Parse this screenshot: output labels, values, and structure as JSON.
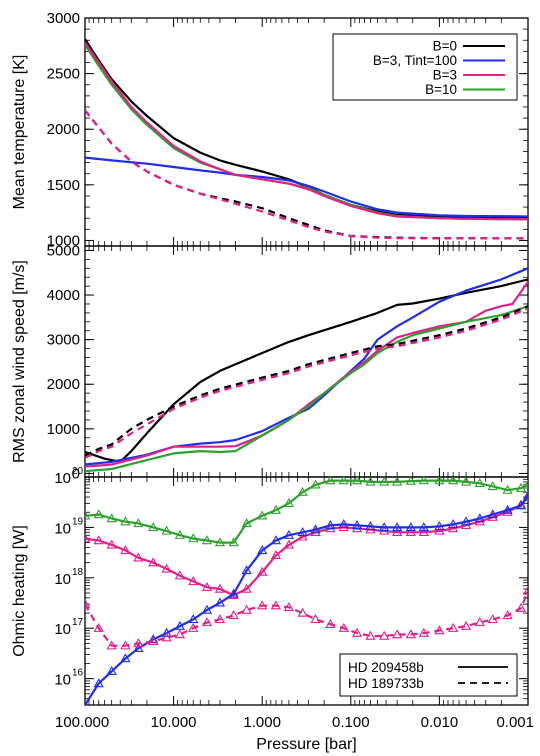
{
  "colors": {
    "black": "#000000",
    "blue": "#1f2ee8",
    "magenta": "#e0218a",
    "green": "#2ea02c"
  },
  "chart_data": [
    {
      "type": "line",
      "panel": "top",
      "ylabel": "Mean temperature [K]",
      "x_scale": "log-reversed",
      "xlim": [
        100,
        0.001
      ],
      "ylim": [
        950,
        3000
      ],
      "yticks": [
        1000,
        1500,
        2000,
        2500,
        3000
      ],
      "ytick_labels": [
        "1000",
        "1500",
        "2000",
        "2500",
        "3000"
      ],
      "legend_position": "top-right",
      "legend": [
        {
          "label": "B=0",
          "color": "#000000"
        },
        {
          "label": "B=3, Tint=100",
          "color": "#1f2ee8"
        },
        {
          "label": "B=3",
          "color": "#e0218a"
        },
        {
          "label": "B=10",
          "color": "#2ea02c"
        }
      ],
      "series": [
        {
          "color": "#000000",
          "dash": "solid",
          "x": [
            100,
            70,
            50,
            30,
            20,
            10,
            5,
            3,
            2,
            1,
            0.5,
            0.3,
            0.2,
            0.1,
            0.05,
            0.03,
            0.01,
            0.005,
            0.002,
            0.001
          ],
          "y": [
            2810,
            2620,
            2450,
            2250,
            2120,
            1920,
            1790,
            1720,
            1680,
            1620,
            1550,
            1480,
            1410,
            1320,
            1260,
            1230,
            1210,
            1205,
            1200,
            1200
          ]
        },
        {
          "color": "#1f2ee8",
          "dash": "solid",
          "x": [
            100,
            50,
            20,
            10,
            5,
            3,
            2,
            1,
            0.5,
            0.3,
            0.2,
            0.1,
            0.05,
            0.03,
            0.01,
            0.005,
            0.002,
            0.001
          ],
          "y": [
            1745,
            1720,
            1690,
            1660,
            1630,
            1610,
            1590,
            1570,
            1540,
            1490,
            1440,
            1350,
            1280,
            1250,
            1225,
            1220,
            1218,
            1215
          ]
        },
        {
          "color": "#2ea02c",
          "dash": "solid",
          "x": [
            100,
            70,
            50,
            30,
            20,
            10,
            5,
            3,
            2,
            1,
            0.5,
            0.3,
            0.2,
            0.1,
            0.05,
            0.03,
            0.01,
            0.005,
            0.002,
            0.001
          ],
          "y": [
            2760,
            2570,
            2400,
            2180,
            2040,
            1830,
            1700,
            1640,
            1590,
            1550,
            1510,
            1470,
            1410,
            1320,
            1250,
            1220,
            1200,
            1195,
            1192,
            1190
          ]
        },
        {
          "color": "#e0218a",
          "dash": "solid",
          "x": [
            100,
            70,
            50,
            30,
            20,
            10,
            5,
            3,
            2,
            1,
            0.5,
            0.3,
            0.2,
            0.1,
            0.05,
            0.03,
            0.01,
            0.005,
            0.002,
            0.001
          ],
          "y": [
            2780,
            2600,
            2430,
            2200,
            2060,
            1850,
            1710,
            1640,
            1590,
            1550,
            1510,
            1460,
            1400,
            1310,
            1245,
            1215,
            1200,
            1195,
            1192,
            1190
          ]
        },
        {
          "color": "#000000",
          "dash": "dashed",
          "x": [
            100,
            50,
            30,
            20,
            10,
            5,
            3,
            2,
            1,
            0.5,
            0.3,
            0.2,
            0.1,
            0.05,
            0.03,
            0.01,
            0.005,
            0.002,
            0.001
          ],
          "y": [
            2170,
            1870,
            1710,
            1620,
            1500,
            1420,
            1380,
            1350,
            1290,
            1200,
            1140,
            1090,
            1040,
            1030,
            1025,
            1020,
            1020,
            1018,
            1018
          ]
        },
        {
          "color": "#e0218a",
          "dash": "dashed",
          "x": [
            100,
            50,
            30,
            20,
            10,
            5,
            3,
            2,
            1,
            0.5,
            0.3,
            0.2,
            0.1,
            0.05,
            0.03,
            0.01,
            0.005,
            0.002,
            0.001
          ],
          "y": [
            2170,
            1870,
            1710,
            1620,
            1500,
            1420,
            1370,
            1330,
            1260,
            1180,
            1120,
            1080,
            1040,
            1025,
            1020,
            1018,
            1018,
            1018,
            1018
          ]
        }
      ]
    },
    {
      "type": "line",
      "panel": "middle",
      "ylabel": "RMS zonal wind speed [m/s]",
      "x_scale": "log-reversed",
      "xlim": [
        100,
        0.001
      ],
      "ylim": [
        -80,
        5100
      ],
      "yticks": [
        0,
        1000,
        2000,
        3000,
        4000,
        5000
      ],
      "ytick_labels": [
        "0",
        "1000",
        "2000",
        "3000",
        "4000",
        "5000"
      ],
      "series": [
        {
          "color": "#000000",
          "dash": "solid",
          "x": [
            100,
            60,
            40,
            30,
            20,
            10,
            5,
            3,
            1,
            0.5,
            0.3,
            0.1,
            0.05,
            0.03,
            0.02,
            0.01,
            0.005,
            0.002,
            0.001
          ],
          "y": [
            480,
            330,
            260,
            500,
            900,
            1550,
            2050,
            2300,
            2700,
            2950,
            3100,
            3400,
            3600,
            3780,
            3810,
            3920,
            4050,
            4200,
            4350
          ]
        },
        {
          "color": "#1f2ee8",
          "dash": "solid",
          "x": [
            100,
            50,
            20,
            10,
            5,
            3,
            2,
            1,
            0.5,
            0.3,
            0.2,
            0.1,
            0.07,
            0.05,
            0.03,
            0.02,
            0.01,
            0.005,
            0.002,
            0.001
          ],
          "y": [
            200,
            260,
            420,
            600,
            670,
            700,
            750,
            950,
            1250,
            1450,
            1750,
            2300,
            2580,
            3000,
            3300,
            3500,
            3850,
            4100,
            4350,
            4600
          ]
        },
        {
          "color": "#e0218a",
          "dash": "solid",
          "x": [
            100,
            50,
            20,
            10,
            5,
            3,
            2,
            1,
            0.5,
            0.3,
            0.2,
            0.1,
            0.07,
            0.05,
            0.03,
            0.02,
            0.01,
            0.005,
            0.003,
            0.002,
            0.0015,
            0.001
          ],
          "y": [
            150,
            200,
            400,
            600,
            600,
            600,
            610,
            850,
            1200,
            1550,
            1800,
            2280,
            2500,
            2750,
            3050,
            3150,
            3300,
            3400,
            3650,
            3750,
            3800,
            4300
          ]
        },
        {
          "color": "#2ea02c",
          "dash": "solid",
          "x": [
            100,
            50,
            20,
            10,
            5,
            3,
            2,
            1,
            0.5,
            0.3,
            0.2,
            0.1,
            0.07,
            0.05,
            0.03,
            0.02,
            0.01,
            0.005,
            0.002,
            0.001
          ],
          "y": [
            50,
            100,
            300,
            450,
            500,
            480,
            500,
            850,
            1200,
            1500,
            1800,
            2250,
            2450,
            2700,
            2950,
            3100,
            3250,
            3400,
            3550,
            3750
          ]
        },
        {
          "color": "#000000",
          "dash": "dashed",
          "x": [
            100,
            70,
            50,
            30,
            20,
            10,
            5,
            3,
            1,
            0.5,
            0.3,
            0.1,
            0.05,
            0.03,
            0.01,
            0.005,
            0.002,
            0.001
          ],
          "y": [
            400,
            550,
            650,
            1000,
            1200,
            1500,
            1750,
            1900,
            2150,
            2300,
            2450,
            2700,
            2850,
            2900,
            3100,
            3250,
            3500,
            3750
          ]
        },
        {
          "color": "#e0218a",
          "dash": "dashed",
          "x": [
            100,
            70,
            50,
            30,
            20,
            10,
            5,
            3,
            1,
            0.5,
            0.3,
            0.1,
            0.05,
            0.03,
            0.01,
            0.005,
            0.002,
            0.001
          ],
          "y": [
            350,
            500,
            600,
            900,
            1100,
            1450,
            1700,
            1850,
            2100,
            2250,
            2400,
            2650,
            2800,
            2850,
            3050,
            3200,
            3450,
            3700
          ]
        }
      ]
    },
    {
      "type": "line",
      "panel": "bottom",
      "ylabel": "Ohmic heating [W]",
      "xlabel": "Pressure [bar]",
      "x_scale": "log-reversed",
      "y_scale": "log",
      "xlim": [
        100,
        0.001
      ],
      "ylim": [
        3000000000000000.0,
        1e+20
      ],
      "yticks": [
        1e+16,
        1e+17,
        1e+18,
        1e+19,
        1e+20
      ],
      "ytick_labels": [
        [
          "10",
          "16"
        ],
        [
          "10",
          "17"
        ],
        [
          "10",
          "18"
        ],
        [
          "10",
          "19"
        ],
        [
          "10",
          "20"
        ]
      ],
      "xticks": [
        100,
        10,
        1,
        0.1,
        0.01,
        0.001
      ],
      "xtick_labels": [
        "100.000",
        "10.000",
        "1.000",
        "0.100",
        "0.010",
        "0.001"
      ],
      "marker": "triangle",
      "legend_position": "bottom-right",
      "legend": [
        {
          "label": "HD 209458b",
          "dash": "solid"
        },
        {
          "label": "HD 189733b",
          "dash": "dashed"
        }
      ],
      "series": [
        {
          "color": "#2ea02c",
          "dash": "solid",
          "x": [
            100,
            70,
            50,
            35,
            25,
            17,
            12,
            8.5,
            6,
            4.2,
            3,
            2.1,
            1.5,
            1.0,
            0.7,
            0.5,
            0.35,
            0.25,
            0.17,
            0.12,
            0.085,
            0.06,
            0.042,
            0.03,
            0.021,
            0.015,
            0.01,
            0.007,
            0.005,
            0.0035,
            0.0025,
            0.0017,
            0.0012,
            0.001
          ],
          "y": [
            1.7e+19,
            1.8e+19,
            1.5e+19,
            1.3e+19,
            1.2e+19,
            1e+19,
            8.5e+18,
            7e+18,
            6e+18,
            5.5e+18,
            5e+18,
            5e+18,
            1.2e+19,
            1.7e+19,
            2.2e+19,
            3e+19,
            5e+19,
            7e+19,
            8.5e+19,
            8.5e+19,
            8.5e+19,
            8e+19,
            8e+19,
            8e+19,
            8.3e+19,
            8.5e+19,
            8.5e+19,
            8.5e+19,
            8e+19,
            7.5e+19,
            6.5e+19,
            5.5e+19,
            6e+19,
            7e+19
          ]
        },
        {
          "color": "#e0218a",
          "dash": "solid",
          "x": [
            100,
            70,
            50,
            35,
            25,
            17,
            12,
            8.5,
            6,
            4.2,
            3,
            2.1,
            1.5,
            1.0,
            0.7,
            0.5,
            0.35,
            0.25,
            0.17,
            0.12,
            0.085,
            0.06,
            0.042,
            0.03,
            0.021,
            0.015,
            0.01,
            0.007,
            0.005,
            0.0035,
            0.0025,
            0.0017,
            0.0012,
            0.001
          ],
          "y": [
            6e+18,
            5.5e+18,
            4.5e+18,
            3.5e+18,
            2.5e+18,
            2e+18,
            1.5e+18,
            1.1e+18,
            8.5e+17,
            6.5e+17,
            6e+17,
            4.5e+17,
            6e+17,
            1.3e+18,
            2.8e+18,
            4.5e+18,
            6.5e+18,
            8e+18,
            9.5e+18,
            1e+19,
            9.5e+18,
            9e+18,
            8.5e+18,
            8e+18,
            8e+18,
            8e+18,
            8.5e+18,
            9.5e+18,
            1.1e+19,
            1.3e+19,
            1.6e+19,
            2e+19,
            2.8e+19,
            4e+19
          ]
        },
        {
          "color": "#1f2ee8",
          "dash": "solid",
          "x": [
            100,
            70,
            50,
            35,
            25,
            17,
            12,
            8.5,
            6,
            4.2,
            3,
            2.1,
            1.5,
            1.0,
            0.7,
            0.5,
            0.35,
            0.25,
            0.17,
            0.12,
            0.085,
            0.06,
            0.042,
            0.03,
            0.021,
            0.015,
            0.01,
            0.007,
            0.005,
            0.0035,
            0.0025,
            0.0017,
            0.0012,
            0.001
          ],
          "y": [
            3000000000000000.0,
            8000000000000000.0,
            1.4e+16,
            2.5e+16,
            4e+16,
            6e+16,
            8e+16,
            1.1e+17,
            1.5e+17,
            2.3e+17,
            3.2e+17,
            4.8e+17,
            1.4e+18,
            3.5e+18,
            5.5e+18,
            7e+18,
            8e+18,
            9e+18,
            1.1e+19,
            1.15e+19,
            1.1e+19,
            1.05e+19,
            1e+19,
            1e+19,
            1e+19,
            1e+19,
            1.05e+19,
            1.15e+19,
            1.3e+19,
            1.5e+19,
            1.8e+19,
            2.2e+19,
            2.7e+19,
            4.2e+19
          ]
        },
        {
          "color": "#e0218a",
          "dash": "dashed",
          "x": [
            100,
            70,
            50,
            35,
            25,
            17,
            12,
            8.5,
            6,
            4.2,
            3,
            2.1,
            1.5,
            1.0,
            0.7,
            0.5,
            0.35,
            0.25,
            0.17,
            0.12,
            0.085,
            0.06,
            0.042,
            0.03,
            0.021,
            0.015,
            0.01,
            0.007,
            0.005,
            0.0035,
            0.0025,
            0.0017,
            0.0012,
            0.001
          ],
          "y": [
            3e+17,
            1e+17,
            4.5e+16,
            4.5e+16,
            5e+16,
            5.5e+16,
            6.5e+16,
            7.5e+16,
            1e+17,
            1.3e+17,
            1.5e+17,
            1.8e+17,
            2.3e+17,
            2.8e+17,
            2.8e+17,
            2.6e+17,
            2e+17,
            1.5e+17,
            1.2e+17,
            1e+17,
            8e+16,
            7e+16,
            7e+16,
            7.5e+16,
            7.5e+16,
            8e+16,
            9e+16,
            1e+17,
            1.1e+17,
            1.3e+17,
            1.5e+17,
            1.8e+17,
            2.5e+17,
            5.5e+17
          ]
        }
      ]
    }
  ]
}
